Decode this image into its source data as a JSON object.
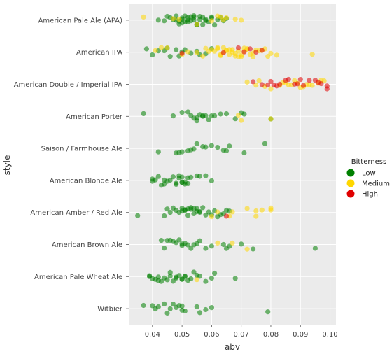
{
  "chart_data": {
    "type": "scatter",
    "subtype": "stripplot",
    "xlabel": "abv",
    "ylabel": "style",
    "xlim": [
      0.032,
      0.102
    ],
    "xticks": [
      0.04,
      0.05,
      0.06,
      0.07,
      0.08,
      0.09,
      0.1
    ],
    "xtick_labels": [
      "0.04",
      "0.05",
      "0.06",
      "0.07",
      "0.08",
      "0.09",
      "0.10"
    ],
    "categories": [
      "American Pale Ale (APA)",
      "American IPA",
      "American Double / Imperial IPA",
      "American Porter",
      "Saison / Farmhouse Ale",
      "American Blonde Ale",
      "American Amber / Red Ale",
      "American Brown Ale",
      "American Pale Wheat Ale",
      "Witbier"
    ],
    "grid": true,
    "legend": {
      "title": "Bitterness",
      "position": "right",
      "entries": [
        {
          "label": "Low",
          "color": "#008000"
        },
        {
          "label": "Medium",
          "color": "#FFD700"
        },
        {
          "label": "High",
          "color": "#E00000"
        }
      ]
    },
    "series": [
      {
        "name": "Low",
        "color": "#008000",
        "points": [
          {
            "cat": 0,
            "x": [
              0.042,
              0.044,
              0.045,
              0.046,
              0.047,
              0.048,
              0.048,
              0.049,
              0.049,
              0.05,
              0.05,
              0.05,
              0.051,
              0.051,
              0.052,
              0.052,
              0.052,
              0.053,
              0.053,
              0.054,
              0.054,
              0.054,
              0.055,
              0.055,
              0.056,
              0.056,
              0.057,
              0.057,
              0.058,
              0.058,
              0.059,
              0.06,
              0.06,
              0.061,
              0.062,
              0.063,
              0.064,
              0.065
            ]
          },
          {
            "cat": 1,
            "x": [
              0.038,
              0.04,
              0.042,
              0.044,
              0.045,
              0.046,
              0.048,
              0.049,
              0.05,
              0.051,
              0.053,
              0.055,
              0.056,
              0.058,
              0.06
            ]
          },
          {
            "cat": 3,
            "x": [
              0.037,
              0.047,
              0.05,
              0.052,
              0.053,
              0.054,
              0.055,
              0.055,
              0.056,
              0.057,
              0.057,
              0.058,
              0.059,
              0.06,
              0.061,
              0.063,
              0.065,
              0.068,
              0.07,
              0.071,
              0.08
            ]
          },
          {
            "cat": 4,
            "x": [
              0.042,
              0.048,
              0.049,
              0.05,
              0.052,
              0.053,
              0.054,
              0.055,
              0.057,
              0.058,
              0.06,
              0.062,
              0.064,
              0.065,
              0.066,
              0.071,
              0.078
            ]
          },
          {
            "cat": 5,
            "x": [
              0.04,
              0.04,
              0.041,
              0.042,
              0.043,
              0.044,
              0.044,
              0.045,
              0.046,
              0.047,
              0.048,
              0.048,
              0.049,
              0.049,
              0.05,
              0.05,
              0.05,
              0.051,
              0.051,
              0.052,
              0.052,
              0.053,
              0.055,
              0.056,
              0.058,
              0.06
            ]
          },
          {
            "cat": 6,
            "x": [
              0.035,
              0.044,
              0.045,
              0.046,
              0.047,
              0.048,
              0.049,
              0.05,
              0.05,
              0.051,
              0.051,
              0.052,
              0.052,
              0.053,
              0.053,
              0.054,
              0.054,
              0.055,
              0.055,
              0.056,
              0.056,
              0.057,
              0.058,
              0.059,
              0.06,
              0.061,
              0.062,
              0.063,
              0.064,
              0.065,
              0.066
            ]
          },
          {
            "cat": 7,
            "x": [
              0.043,
              0.044,
              0.045,
              0.046,
              0.047,
              0.048,
              0.049,
              0.05,
              0.05,
              0.051,
              0.052,
              0.053,
              0.054,
              0.055,
              0.056,
              0.058,
              0.06,
              0.064,
              0.065,
              0.066,
              0.07,
              0.074,
              0.095
            ]
          },
          {
            "cat": 8,
            "x": [
              0.039,
              0.039,
              0.04,
              0.041,
              0.042,
              0.042,
              0.043,
              0.044,
              0.045,
              0.046,
              0.046,
              0.047,
              0.048,
              0.048,
              0.049,
              0.05,
              0.05,
              0.051,
              0.051,
              0.052,
              0.053,
              0.054,
              0.055,
              0.056,
              0.058,
              0.06,
              0.061,
              0.068
            ]
          },
          {
            "cat": 9,
            "x": [
              0.037,
              0.04,
              0.041,
              0.042,
              0.044,
              0.045,
              0.046,
              0.047,
              0.048,
              0.049,
              0.05,
              0.05,
              0.051,
              0.055,
              0.056,
              0.058,
              0.06,
              0.079
            ]
          }
        ]
      },
      {
        "name": "Medium",
        "color": "#FFD700",
        "points": [
          {
            "cat": 0,
            "x": [
              0.037,
              0.047,
              0.049,
              0.055,
              0.06,
              0.062,
              0.063,
              0.064,
              0.065,
              0.068,
              0.07
            ]
          },
          {
            "cat": 1,
            "x": [
              0.041,
              0.043,
              0.045,
              0.05,
              0.052,
              0.055,
              0.057,
              0.058,
              0.059,
              0.06,
              0.061,
              0.062,
              0.062,
              0.063,
              0.063,
              0.064,
              0.064,
              0.065,
              0.065,
              0.066,
              0.066,
              0.067,
              0.067,
              0.068,
              0.068,
              0.069,
              0.069,
              0.07,
              0.07,
              0.071,
              0.071,
              0.072,
              0.072,
              0.073,
              0.074,
              0.074,
              0.075,
              0.076,
              0.077,
              0.078,
              0.079,
              0.08,
              0.082,
              0.094
            ]
          },
          {
            "cat": 2,
            "x": [
              0.072,
              0.075,
              0.076,
              0.078,
              0.08,
              0.083,
              0.084,
              0.085,
              0.086,
              0.087,
              0.088,
              0.089,
              0.09,
              0.091,
              0.092,
              0.093,
              0.094,
              0.096,
              0.097,
              0.098
            ]
          },
          {
            "cat": 3,
            "x": [
              0.069,
              0.07,
              0.08
            ]
          },
          {
            "cat": 6,
            "x": [
              0.06,
              0.062,
              0.066,
              0.067,
              0.072,
              0.075,
              0.075,
              0.077,
              0.08,
              0.08
            ]
          },
          {
            "cat": 7,
            "x": [
              0.062,
              0.067,
              0.072
            ]
          },
          {
            "cat": 8,
            "x": [
              0.055
            ]
          }
        ]
      },
      {
        "name": "High",
        "color": "#E00000",
        "points": [
          {
            "cat": 1,
            "x": [
              0.05,
              0.064,
              0.069,
              0.071,
              0.073,
              0.075,
              0.077
            ]
          },
          {
            "cat": 2,
            "x": [
              0.074,
              0.077,
              0.079,
              0.08,
              0.081,
              0.082,
              0.083,
              0.085,
              0.086,
              0.088,
              0.089,
              0.09,
              0.091,
              0.093,
              0.095,
              0.096,
              0.097,
              0.099,
              0.099
            ]
          },
          {
            "cat": 6,
            "x": [
              0.065
            ]
          }
        ]
      }
    ]
  }
}
